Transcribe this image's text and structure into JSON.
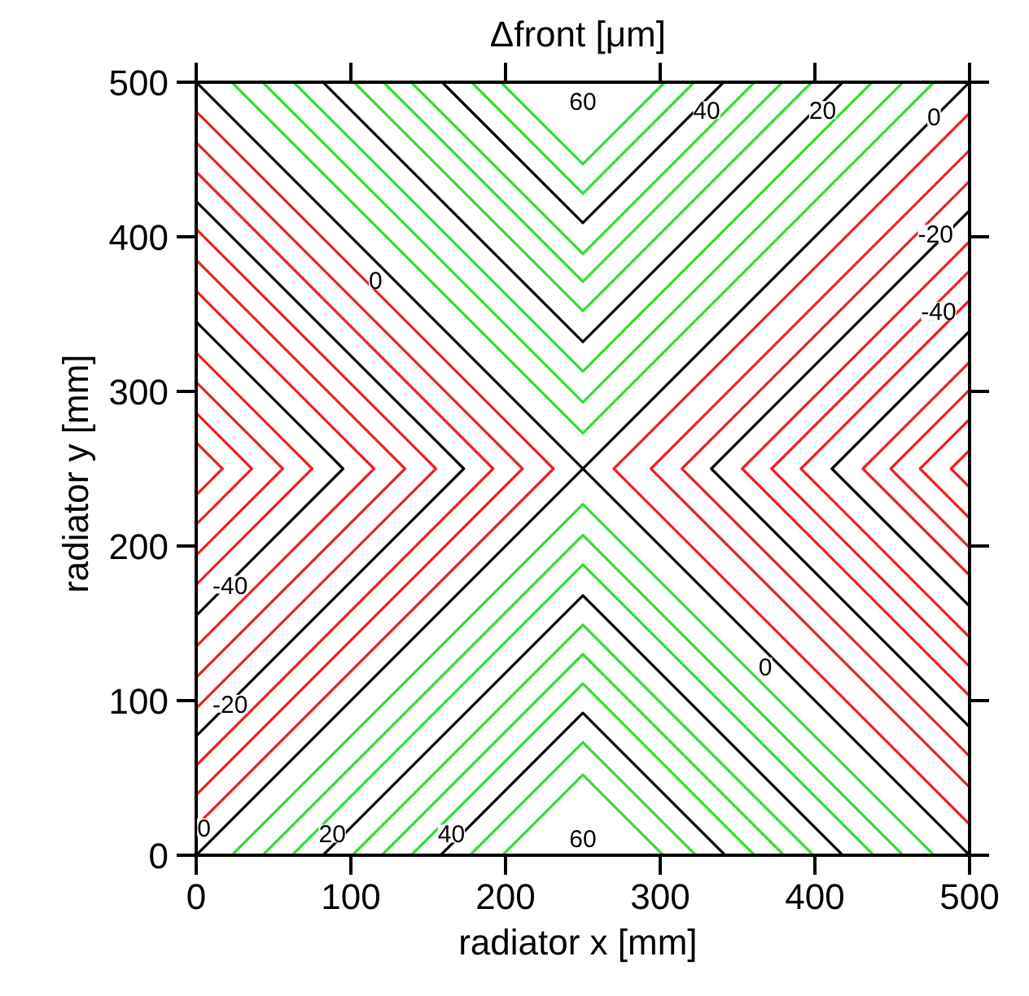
{
  "chart_data": {
    "type": "line",
    "title": "Δfront  [μm]",
    "xlabel": "radiator x  [mm]",
    "ylabel": "radiator y  [mm]",
    "xlim": [
      0,
      500
    ],
    "ylim": [
      0,
      500
    ],
    "xticks": [
      0,
      100,
      200,
      300,
      400,
      500
    ],
    "yticks": [
      0,
      100,
      200,
      300,
      400,
      500
    ],
    "grid": false,
    "marker": "none",
    "line_style": "solid",
    "series": [
      {
        "color": "#000000",
        "x": [
          0,
          500
        ],
        "values": [
          0,
          500
        ]
      },
      {
        "color": "#000000",
        "x": [
          0,
          500
        ],
        "values": [
          500,
          0
        ]
      },
      {
        "color": "#33dd33",
        "x": [
          23,
          250,
          477
        ],
        "values": [
          500,
          273,
          500
        ]
      },
      {
        "color": "#33dd33",
        "x": [
          43,
          250,
          457
        ],
        "values": [
          500,
          293,
          500
        ]
      },
      {
        "color": "#33dd33",
        "x": [
          63,
          250,
          437
        ],
        "values": [
          500,
          313,
          500
        ]
      },
      {
        "color": "#000000",
        "x": [
          82,
          250,
          418
        ],
        "values": [
          500,
          332,
          500
        ]
      },
      {
        "color": "#33dd33",
        "x": [
          102,
          250,
          398
        ],
        "values": [
          500,
          352,
          500
        ]
      },
      {
        "color": "#33dd33",
        "x": [
          121,
          250,
          379
        ],
        "values": [
          500,
          371,
          500
        ]
      },
      {
        "color": "#33dd33",
        "x": [
          139,
          250,
          361
        ],
        "values": [
          500,
          389,
          500
        ]
      },
      {
        "color": "#000000",
        "x": [
          159,
          250,
          341
        ],
        "values": [
          500,
          409,
          500
        ]
      },
      {
        "color": "#33dd33",
        "x": [
          178,
          250,
          322
        ],
        "values": [
          500,
          428,
          500
        ]
      },
      {
        "color": "#33dd33",
        "x": [
          197,
          250,
          303
        ],
        "values": [
          500,
          447,
          500
        ]
      },
      {
        "color": "#33dd33",
        "x": [
          23,
          250,
          477
        ],
        "values": [
          0,
          227,
          0
        ]
      },
      {
        "color": "#33dd33",
        "x": [
          43,
          250,
          457
        ],
        "values": [
          0,
          207,
          0
        ]
      },
      {
        "color": "#33dd33",
        "x": [
          62,
          250,
          438
        ],
        "values": [
          0,
          188,
          0
        ]
      },
      {
        "color": "#000000",
        "x": [
          82,
          250,
          418
        ],
        "values": [
          0,
          168,
          0
        ]
      },
      {
        "color": "#33dd33",
        "x": [
          101,
          250,
          399
        ],
        "values": [
          0,
          149,
          0
        ]
      },
      {
        "color": "#33dd33",
        "x": [
          120,
          250,
          380
        ],
        "values": [
          0,
          130,
          0
        ]
      },
      {
        "color": "#33dd33",
        "x": [
          139,
          250,
          361
        ],
        "values": [
          0,
          111,
          0
        ]
      },
      {
        "color": "#000000",
        "x": [
          158,
          250,
          342
        ],
        "values": [
          0,
          92,
          0
        ]
      },
      {
        "color": "#33dd33",
        "x": [
          177,
          250,
          323
        ],
        "values": [
          0,
          73,
          0
        ]
      },
      {
        "color": "#33dd33",
        "x": [
          198,
          250,
          302
        ],
        "values": [
          0,
          52,
          0
        ]
      },
      {
        "color": "#ee2222",
        "x": [
          0,
          231,
          0
        ],
        "values": [
          19,
          250,
          481
        ]
      },
      {
        "color": "#ee2222",
        "x": [
          0,
          211,
          0
        ],
        "values": [
          39,
          250,
          461
        ]
      },
      {
        "color": "#ee2222",
        "x": [
          0,
          192,
          0
        ],
        "values": [
          58,
          250,
          442
        ]
      },
      {
        "color": "#000000",
        "x": [
          0,
          173,
          0
        ],
        "values": [
          77,
          250,
          423
        ]
      },
      {
        "color": "#ee2222",
        "x": [
          0,
          155,
          0
        ],
        "values": [
          95,
          250,
          405
        ]
      },
      {
        "color": "#ee2222",
        "x": [
          0,
          135,
          0
        ],
        "values": [
          115,
          250,
          385
        ]
      },
      {
        "color": "#ee2222",
        "x": [
          0,
          115,
          0
        ],
        "values": [
          135,
          250,
          365
        ]
      },
      {
        "color": "#000000",
        "x": [
          0,
          95,
          0
        ],
        "values": [
          155,
          250,
          345
        ]
      },
      {
        "color": "#ee2222",
        "x": [
          0,
          75,
          0
        ],
        "values": [
          175,
          250,
          325
        ]
      },
      {
        "color": "#ee2222",
        "x": [
          0,
          56,
          0
        ],
        "values": [
          194,
          250,
          306
        ]
      },
      {
        "color": "#ee2222",
        "x": [
          0,
          36,
          0
        ],
        "values": [
          214,
          250,
          286
        ]
      },
      {
        "color": "#ee2222",
        "x": [
          0,
          17,
          0
        ],
        "values": [
          233,
          250,
          267
        ]
      },
      {
        "color": "#ee2222",
        "x": [
          500,
          270,
          500
        ],
        "values": [
          20,
          250,
          480
        ]
      },
      {
        "color": "#ee2222",
        "x": [
          500,
          294,
          500
        ],
        "values": [
          44,
          250,
          456
        ]
      },
      {
        "color": "#ee2222",
        "x": [
          500,
          314,
          500
        ],
        "values": [
          64,
          250,
          436
        ]
      },
      {
        "color": "#000000",
        "x": [
          500,
          333,
          500
        ],
        "values": [
          83,
          250,
          417
        ]
      },
      {
        "color": "#ee2222",
        "x": [
          500,
          353,
          500
        ],
        "values": [
          103,
          250,
          397
        ]
      },
      {
        "color": "#ee2222",
        "x": [
          500,
          372,
          500
        ],
        "values": [
          122,
          250,
          378
        ]
      },
      {
        "color": "#ee2222",
        "x": [
          500,
          391,
          500
        ],
        "values": [
          141,
          250,
          359
        ]
      },
      {
        "color": "#000000",
        "x": [
          500,
          411,
          500
        ],
        "values": [
          161,
          250,
          339
        ]
      },
      {
        "color": "#ee2222",
        "x": [
          500,
          431,
          500
        ],
        "values": [
          181,
          250,
          319
        ]
      },
      {
        "color": "#ee2222",
        "x": [
          500,
          449,
          500
        ],
        "values": [
          199,
          250,
          301
        ]
      },
      {
        "color": "#ee2222",
        "x": [
          500,
          468,
          500
        ],
        "values": [
          218,
          250,
          282
        ]
      },
      {
        "color": "#ee2222",
        "x": [
          500,
          488,
          500
        ],
        "values": [
          238,
          250,
          262
        ]
      }
    ],
    "annotations": [
      {
        "text": "60",
        "x": 250,
        "y": 488
      },
      {
        "text": "40",
        "x": 330,
        "y": 482
      },
      {
        "text": "20",
        "x": 405,
        "y": 482
      },
      {
        "text": "0",
        "x": 477,
        "y": 478
      },
      {
        "text": "-20",
        "x": 478,
        "y": 402
      },
      {
        "text": "-40",
        "x": 480,
        "y": 352
      },
      {
        "text": "0",
        "x": 116,
        "y": 372
      },
      {
        "text": "-40",
        "x": 22,
        "y": 175
      },
      {
        "text": "-20",
        "x": 22,
        "y": 98
      },
      {
        "text": "0",
        "x": 5,
        "y": 18
      },
      {
        "text": "20",
        "x": 88,
        "y": 14
      },
      {
        "text": "40",
        "x": 165,
        "y": 14
      },
      {
        "text": "60",
        "x": 250,
        "y": 11
      },
      {
        "text": "0",
        "x": 368,
        "y": 122
      }
    ]
  }
}
